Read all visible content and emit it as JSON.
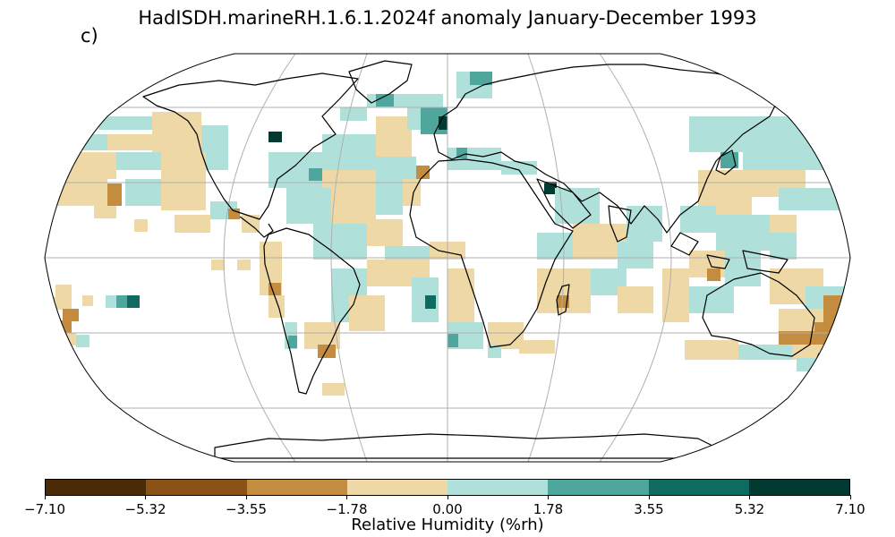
{
  "title": "HadISDH.marineRH.1.6.1.2024f anomaly January-December 1993",
  "panel_label": "c)",
  "colorbar": {
    "label": "Relative Humidity (%rh)",
    "ticks": [
      "−7.10",
      "−5.32",
      "−3.55",
      "−1.78",
      "0.00",
      "1.78",
      "3.55",
      "5.32",
      "7.10"
    ],
    "colors": [
      "#4a2a07",
      "#8b5217",
      "#c48c3f",
      "#eed8a5",
      "#b0e0da",
      "#4ea69c",
      "#0f6b60",
      "#013a30"
    ]
  },
  "map": {
    "projection": "Robinson",
    "coastline_color": "#000000",
    "grid_color": "#b0b0b0"
  }
}
